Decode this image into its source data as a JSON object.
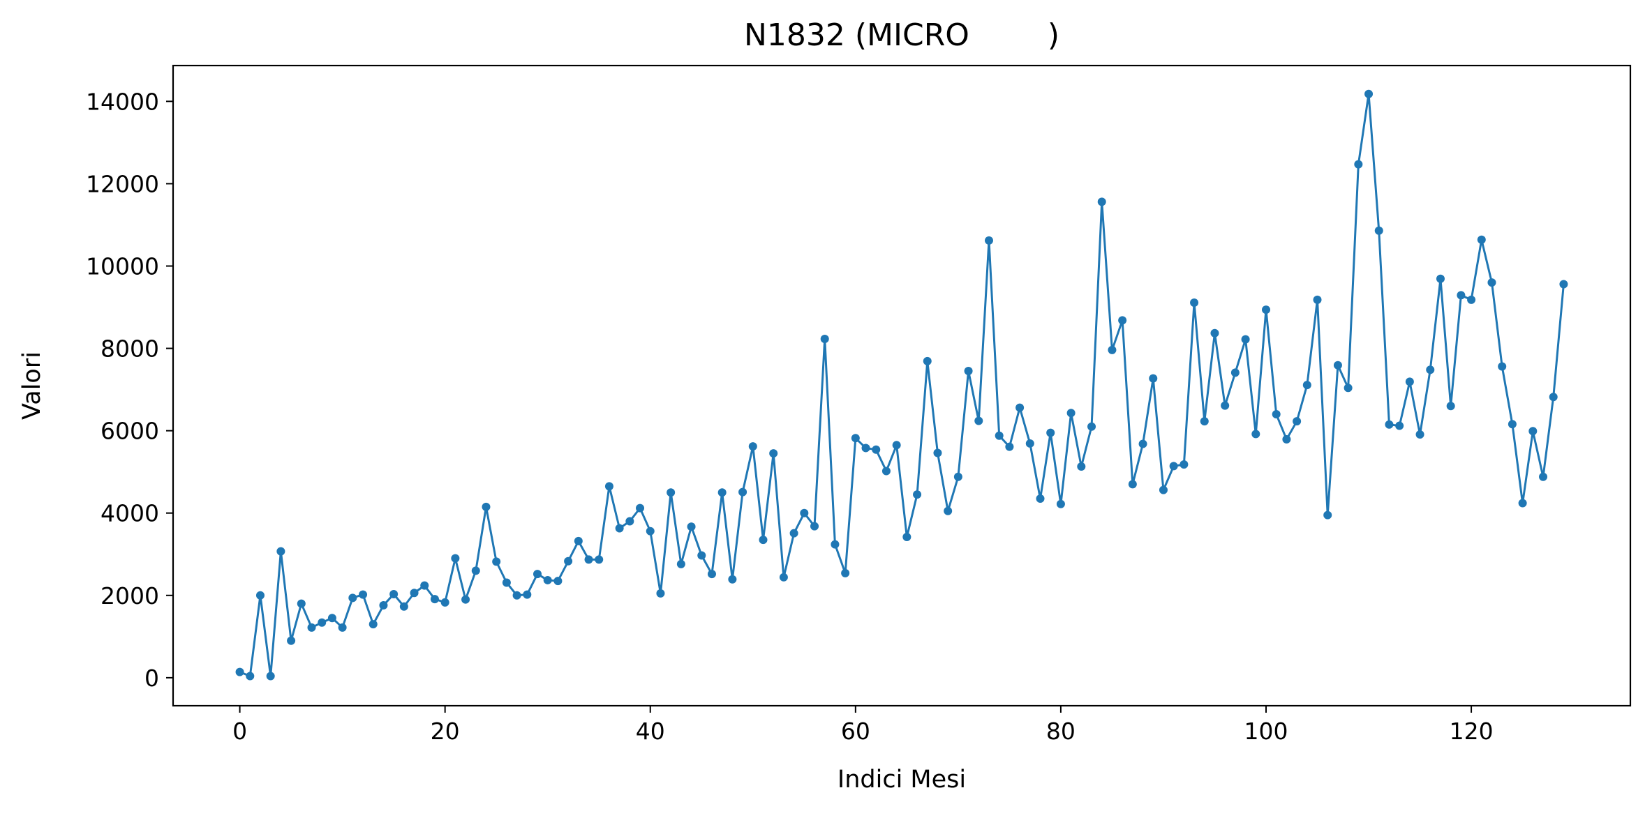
{
  "chart_data": {
    "type": "line",
    "title": "N1832 (MICRO        )",
    "xlabel": "Indici Mesi",
    "ylabel": "Valori",
    "xlim": [
      -6.5,
      135.5
    ],
    "ylim": [
      -680,
      14870
    ],
    "x_ticks": [
      0,
      20,
      40,
      60,
      80,
      100,
      120
    ],
    "y_ticks": [
      0,
      2000,
      4000,
      6000,
      8000,
      10000,
      12000,
      14000
    ],
    "x_tick_labels": [
      "0",
      "20",
      "40",
      "60",
      "80",
      "100",
      "120"
    ],
    "y_tick_labels": [
      "0",
      "2000",
      "4000",
      "6000",
      "8000",
      "10000",
      "12000",
      "14000"
    ],
    "grid": false,
    "line_color": "#1f77b4",
    "series": [
      {
        "x_start": 0,
        "values": [
          140,
          40,
          2000,
          40,
          3070,
          900,
          1800,
          1220,
          1340,
          1450,
          1220,
          1940,
          2020,
          1300,
          1760,
          2030,
          1730,
          2060,
          2240,
          1910,
          1830,
          2900,
          1900,
          2600,
          4150,
          2820,
          2310,
          2000,
          2020,
          2520,
          2370,
          2350,
          2830,
          3320,
          2870,
          2870,
          4650,
          3630,
          3800,
          4120,
          3560,
          2050,
          4500,
          2760,
          3670,
          2970,
          2520,
          4500,
          2390,
          4510,
          5620,
          3350,
          5450,
          2440,
          3510,
          4000,
          3680,
          8230,
          3240,
          2540,
          5820,
          5580,
          5540,
          5020,
          5650,
          3420,
          4450,
          7690,
          5460,
          4050,
          4880,
          7450,
          6240,
          10620,
          5880,
          5610,
          6560,
          5690,
          4350,
          5950,
          4220,
          6430,
          5130,
          6100,
          11560,
          7960,
          8680,
          4700,
          5680,
          7270,
          4560,
          5140,
          5180,
          9110,
          6230,
          8370,
          6610,
          7410,
          8220,
          5920,
          8940,
          6400,
          5790,
          6230,
          7110,
          9180,
          3950,
          7590,
          7040,
          12470,
          14180,
          10860,
          6150,
          6120,
          7190,
          5910,
          7480,
          9690,
          6600,
          9290,
          9180,
          10640,
          9600,
          7560,
          6160,
          4240,
          5990,
          4880,
          6820,
          9560
        ]
      }
    ]
  }
}
